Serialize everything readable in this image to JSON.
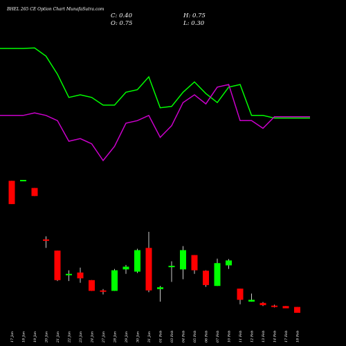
{
  "chart_data": {
    "type": "candlestick",
    "title": "BHEL 265 CE Option  Chart MunafaSutra.com",
    "readout": {
      "close_label": "C: 0.40",
      "high_label": "H: 0.75",
      "open_label": "O: 0.75",
      "low_label": "L: 0.30"
    },
    "categories": [
      "17 Jan",
      "18 Jan",
      "19 Jan",
      "20 Jan",
      "21 Jan",
      "22 Jan",
      "23 Jan",
      "24 Jan",
      "27 Jan",
      "28 Jan",
      "29 Jan",
      "30 Jan",
      "31 Jan",
      "01 Feb",
      "03 Feb",
      "04 Feb",
      "05 Feb",
      "06 Feb",
      "07 Feb",
      "10 Feb",
      "11 Feb",
      "12 Feb",
      "13 Feb",
      "14 Feb",
      "17 Feb",
      "18 Feb"
    ],
    "candles": [
      {
        "o": 17.5,
        "h": 17.5,
        "l": 14.9,
        "c": 14.9
      },
      {
        "o": 17.6,
        "h": 17.6,
        "l": 17.5,
        "c": 17.6
      },
      {
        "o": 16.7,
        "h": 16.7,
        "l": 15.8,
        "c": 15.8
      },
      {
        "o": 10.95,
        "h": 11.3,
        "l": 10.0,
        "c": 10.9
      },
      {
        "o": 9.7,
        "h": 9.7,
        "l": 6.3,
        "c": 6.4
      },
      {
        "o": 7.0,
        "h": 7.5,
        "l": 6.3,
        "c": 7.1
      },
      {
        "o": 7.25,
        "h": 7.8,
        "l": 6.1,
        "c": 6.6
      },
      {
        "o": 6.4,
        "h": 6.4,
        "l": 5.2,
        "c": 5.2
      },
      {
        "o": 5.25,
        "h": 5.4,
        "l": 4.8,
        "c": 5.15
      },
      {
        "o": 5.2,
        "h": 7.65,
        "l": 5.2,
        "c": 7.5
      },
      {
        "o": 7.6,
        "h": 8.1,
        "l": 7.1,
        "c": 7.9
      },
      {
        "o": 7.35,
        "h": 9.9,
        "l": 7.2,
        "c": 9.75
      },
      {
        "o": 10.0,
        "h": 11.8,
        "l": 5.05,
        "c": 5.25
      },
      {
        "o": 5.4,
        "h": 5.75,
        "l": 4.0,
        "c": 5.6
      },
      {
        "o": 7.95,
        "h": 8.5,
        "l": 6.2,
        "c": 8.0
      },
      {
        "o": 7.6,
        "h": 10.2,
        "l": 6.5,
        "c": 9.75
      },
      {
        "o": 9.2,
        "h": 9.2,
        "l": 7.1,
        "c": 7.5
      },
      {
        "o": 7.45,
        "h": 7.5,
        "l": 5.65,
        "c": 5.85
      },
      {
        "o": 5.75,
        "h": 8.8,
        "l": 5.75,
        "c": 8.3
      },
      {
        "o": 8.05,
        "h": 8.75,
        "l": 7.65,
        "c": 8.6
      },
      {
        "o": 5.45,
        "h": 5.45,
        "l": 3.7,
        "c": 4.2
      },
      {
        "o": 4.0,
        "h": 4.9,
        "l": 4.0,
        "c": 4.2
      },
      {
        "o": 3.85,
        "h": 3.95,
        "l": 3.5,
        "c": 3.6
      },
      {
        "o": 3.55,
        "h": 3.65,
        "l": 3.35,
        "c": 3.45
      },
      {
        "o": 3.5,
        "h": 3.5,
        "l": 3.25,
        "c": 3.25
      },
      {
        "o": 3.4,
        "h": 3.4,
        "l": 2.75,
        "c": 2.75
      }
    ],
    "series": [
      {
        "color": "#00ff00",
        "values": [
          92,
          92,
          92.2,
          89,
          82,
          73,
          74,
          73,
          70,
          70,
          75,
          76,
          81,
          69,
          69.5,
          75,
          79,
          74.5,
          71,
          77,
          78,
          66,
          66,
          65,
          65,
          65
        ]
      },
      {
        "color": "#cc00cc",
        "values": [
          66,
          66,
          67,
          66,
          64,
          56,
          57,
          55,
          48.5,
          54,
          63,
          64,
          66,
          57.5,
          62,
          71,
          74,
          70.5,
          77,
          78,
          64,
          64,
          61,
          65.5,
          65.5,
          65.5
        ]
      }
    ],
    "up_color": "#00ff00",
    "down_color": "#ff0000",
    "grid": false,
    "background": "#000000"
  }
}
